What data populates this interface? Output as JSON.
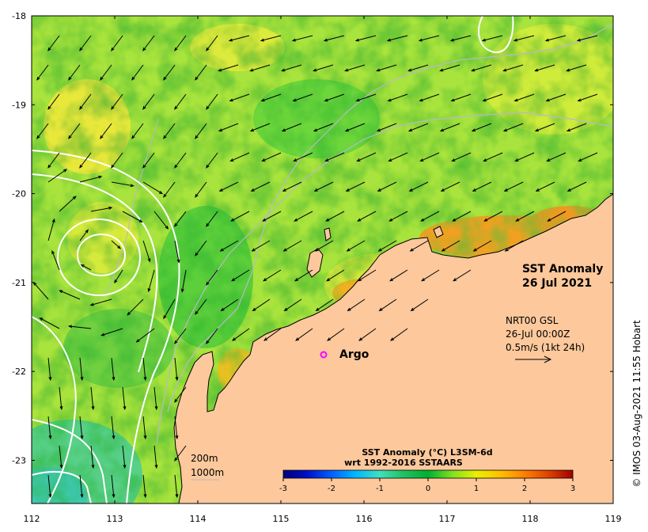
{
  "title_line1": "SST Anomaly",
  "title_line2": "26 Jul 2021",
  "info": {
    "line1": "NRT00 GSL",
    "line2": "26-Jul 00:00Z",
    "line3": "0.5m/s (1kt 24h)"
  },
  "argo_label": "Argo",
  "depth_labels": {
    "d200": "200m",
    "d1000": "1000m"
  },
  "colorbar": {
    "title_line1": "SST Anomaly (°C) L3SM-6d",
    "title_line2": "wrt 1992-2016 SSTAARS",
    "ticks": [
      "-3",
      "-2",
      "-1",
      "0",
      "1",
      "2",
      "3"
    ],
    "stops": [
      "#00007a",
      "#0010c8",
      "#0060ff",
      "#00b8ff",
      "#40e0c0",
      "#20c060",
      "#00b030",
      "#80e020",
      "#e8f000",
      "#ffc000",
      "#ff8000",
      "#e04000",
      "#a00000"
    ]
  },
  "axes": {
    "lat_ticks": [
      "-18",
      "-19",
      "-20",
      "-21",
      "-22",
      "-23"
    ],
    "lon_ticks": [
      "112",
      "113",
      "114",
      "115",
      "116",
      "117",
      "118",
      "119"
    ]
  },
  "copyright": "© IMOS 03-Aug-2021 11:55 Hobart",
  "colors": {
    "land": "#fcc89c",
    "sea_green": "#5ccf3a",
    "sea_yellow": "#d8ef3a",
    "sea_orange": "#f0a020",
    "argo": "#ff00ff"
  }
}
